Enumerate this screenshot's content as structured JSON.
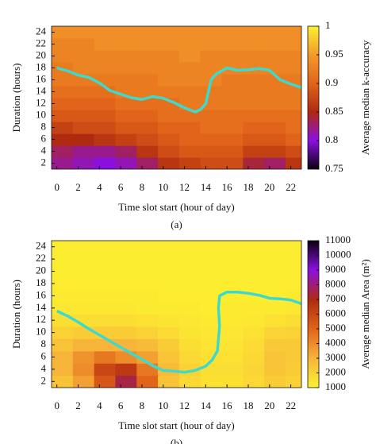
{
  "chart_data": [
    {
      "type": "heatmap",
      "caption": "(a)",
      "xlabel": "Time slot start (hour of day)",
      "ylabel": "Duration (hours)",
      "colorbar_label": "Average median k-accuracy",
      "x": [
        0,
        2,
        4,
        6,
        8,
        10,
        12,
        14,
        16,
        18,
        20,
        22
      ],
      "y": [
        1,
        3,
        5,
        7,
        9,
        11,
        13,
        15,
        17,
        19,
        21,
        23
      ],
      "z": [
        [
          0.82,
          0.81,
          0.8,
          0.81,
          0.83,
          0.86,
          0.87,
          0.88,
          0.88,
          0.84,
          0.83,
          0.86
        ],
        [
          0.83,
          0.82,
          0.82,
          0.83,
          0.86,
          0.88,
          0.89,
          0.89,
          0.89,
          0.87,
          0.87,
          0.88
        ],
        [
          0.85,
          0.85,
          0.86,
          0.87,
          0.88,
          0.89,
          0.9,
          0.9,
          0.9,
          0.89,
          0.89,
          0.9
        ],
        [
          0.87,
          0.88,
          0.88,
          0.89,
          0.89,
          0.9,
          0.9,
          0.91,
          0.91,
          0.9,
          0.9,
          0.91
        ],
        [
          0.89,
          0.89,
          0.89,
          0.9,
          0.9,
          0.91,
          0.91,
          0.91,
          0.91,
          0.91,
          0.91,
          0.91
        ],
        [
          0.9,
          0.9,
          0.9,
          0.91,
          0.91,
          0.91,
          0.92,
          0.92,
          0.92,
          0.92,
          0.92,
          0.92
        ],
        [
          0.91,
          0.91,
          0.91,
          0.92,
          0.92,
          0.92,
          0.92,
          0.92,
          0.92,
          0.92,
          0.92,
          0.92
        ],
        [
          0.92,
          0.92,
          0.92,
          0.92,
          0.92,
          0.93,
          0.93,
          0.93,
          0.92,
          0.92,
          0.92,
          0.92
        ],
        [
          0.92,
          0.93,
          0.93,
          0.93,
          0.93,
          0.93,
          0.93,
          0.93,
          0.93,
          0.93,
          0.93,
          0.93
        ],
        [
          0.93,
          0.93,
          0.93,
          0.93,
          0.93,
          0.93,
          0.94,
          0.93,
          0.93,
          0.93,
          0.93,
          0.93
        ],
        [
          0.93,
          0.93,
          0.94,
          0.94,
          0.94,
          0.94,
          0.94,
          0.94,
          0.94,
          0.94,
          0.94,
          0.94
        ],
        [
          0.94,
          0.94,
          0.94,
          0.94,
          0.94,
          0.94,
          0.94,
          0.94,
          0.94,
          0.94,
          0.94,
          0.94
        ]
      ],
      "xlim": [
        -0.5,
        23
      ],
      "ylim": [
        1,
        25
      ],
      "xticks": [
        0,
        2,
        4,
        6,
        8,
        10,
        12,
        14,
        16,
        18,
        20,
        22
      ],
      "yticks": [
        2,
        4,
        6,
        8,
        10,
        12,
        14,
        16,
        18,
        20,
        22,
        24
      ],
      "clim": [
        0.75,
        1
      ],
      "cticks": [
        0.75,
        0.8,
        0.85,
        0.9,
        0.95,
        1
      ],
      "colormap": [
        "#0a0010",
        "#8a10e0",
        "#b02a10",
        "#e2641a",
        "#f39a2a",
        "#fdf030"
      ],
      "contour": {
        "color": "#3fd9cc",
        "x": [
          0,
          1,
          2,
          3,
          4,
          5,
          6,
          7,
          8,
          9,
          10,
          11,
          12,
          13,
          13.5,
          14,
          14.5,
          15,
          16,
          17,
          18,
          19,
          20,
          21,
          22,
          23
        ],
        "y": [
          18,
          17.5,
          16.8,
          16.4,
          15.5,
          14.2,
          13.6,
          13,
          12.7,
          13.2,
          12.9,
          12.2,
          11.3,
          10.6,
          11,
          12,
          16,
          17,
          18,
          17.6,
          17.7,
          17.9,
          17.6,
          16,
          15.3,
          14.7
        ]
      }
    },
    {
      "type": "heatmap",
      "caption": "(b)",
      "xlabel": "Time slot start (hour of day)",
      "ylabel": "Duration (hours)",
      "colorbar_label": "Average median Area (m²)",
      "x": [
        0,
        2,
        4,
        6,
        8,
        10,
        12,
        14,
        16,
        18,
        20,
        22
      ],
      "y": [
        1,
        3,
        5,
        7,
        9,
        11,
        13,
        15,
        17,
        19,
        21,
        23
      ],
      "z": [
        [
          2500,
          3500,
          5500,
          7500,
          5000,
          2500,
          1800,
          1500,
          1500,
          1800,
          2200,
          2000
        ],
        [
          3000,
          4000,
          6000,
          6500,
          4500,
          2800,
          2000,
          1600,
          1600,
          1900,
          2500,
          2200
        ],
        [
          3000,
          3800,
          4500,
          4000,
          3500,
          2500,
          1800,
          1500,
          1500,
          1800,
          2500,
          2300
        ],
        [
          2500,
          3000,
          3000,
          3000,
          2800,
          2200,
          1600,
          1400,
          1400,
          1700,
          2300,
          2300
        ],
        [
          2000,
          2200,
          2200,
          2200,
          2000,
          1700,
          1400,
          1300,
          1300,
          1500,
          1900,
          2000
        ],
        [
          1600,
          1600,
          1600,
          1600,
          1500,
          1400,
          1300,
          1200,
          1200,
          1300,
          1500,
          1600
        ],
        [
          1300,
          1300,
          1300,
          1300,
          1200,
          1200,
          1200,
          1100,
          1200,
          1200,
          1200,
          1300
        ],
        [
          1200,
          1200,
          1200,
          1200,
          1200,
          1100,
          1100,
          1100,
          1100,
          1100,
          1100,
          1200
        ],
        [
          1100,
          1100,
          1100,
          1100,
          1100,
          1100,
          1100,
          1100,
          1100,
          1100,
          1100,
          1100
        ],
        [
          1100,
          1100,
          1100,
          1100,
          1100,
          1100,
          1100,
          1100,
          1100,
          1100,
          1100,
          1100
        ],
        [
          1100,
          1100,
          1100,
          1100,
          1100,
          1100,
          1100,
          1100,
          1100,
          1100,
          1100,
          1100
        ],
        [
          1100,
          1100,
          1100,
          1100,
          1100,
          1100,
          1100,
          1100,
          1100,
          1100,
          1100,
          1100
        ]
      ],
      "xlim": [
        -0.5,
        23
      ],
      "ylim": [
        1,
        25
      ],
      "xticks": [
        0,
        2,
        4,
        6,
        8,
        10,
        12,
        14,
        16,
        18,
        20,
        22
      ],
      "yticks": [
        2,
        4,
        6,
        8,
        10,
        12,
        14,
        16,
        18,
        20,
        22,
        24
      ],
      "clim": [
        1000,
        11000
      ],
      "cticks": [
        1000,
        2000,
        3000,
        4000,
        5000,
        6000,
        7000,
        8000,
        9000,
        10000,
        11000
      ],
      "colormap": [
        "#fdf030",
        "#f7b43a",
        "#e2641a",
        "#b02a10",
        "#8a10e0",
        "#0a0010"
      ],
      "contour": {
        "color": "#3fd9cc",
        "x": [
          0,
          1,
          2,
          3,
          4,
          5,
          6,
          7,
          8,
          9,
          10,
          11,
          12,
          13,
          14,
          14.6,
          15.1,
          15.2,
          15.3,
          15.2,
          15.3,
          16,
          17,
          18,
          19,
          20,
          21,
          22,
          23
        ],
        "y": [
          13.5,
          12.7,
          11.7,
          10.6,
          9.6,
          8.6,
          7.6,
          6.6,
          5.6,
          4.6,
          3.8,
          3.7,
          3.5,
          3.8,
          4.5,
          5.5,
          7,
          9,
          11,
          14,
          16,
          16.6,
          16.6,
          16.4,
          16.1,
          15.6,
          15.5,
          15.3,
          14.7
        ]
      }
    }
  ]
}
